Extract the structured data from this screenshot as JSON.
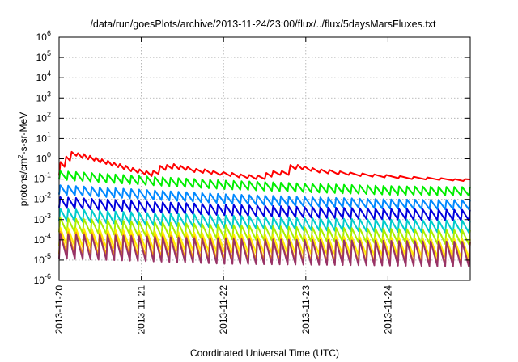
{
  "chart_data": {
    "type": "line",
    "title": "/data/run/goesPlots/archive/2013-11-24/23:00/flux/../flux/5daysMarsFluxes.txt",
    "xlabel": "Coordinated Universal Time (UTC)",
    "ylabel": {
      "prefix": "protons/cm",
      "sup": "2",
      "suffix": "-s-sr-MeV"
    },
    "xlim": [
      "2013-11-20",
      "2013-11-25"
    ],
    "ylim": [
      1e-06,
      1000000.0
    ],
    "yscale": "log",
    "grid": true,
    "legend": "none",
    "x_ticks": [
      "2013-11-20",
      "2013-11-21",
      "2013-11-22",
      "2013-11-23",
      "2013-11-24"
    ],
    "y_ticks": [
      {
        "value": 1000000.0,
        "base": "10",
        "exp": "6"
      },
      {
        "value": 100000.0,
        "base": "10",
        "exp": "5"
      },
      {
        "value": 10000.0,
        "base": "10",
        "exp": "4"
      },
      {
        "value": 1000.0,
        "base": "10",
        "exp": "3"
      },
      {
        "value": 100.0,
        "base": "10",
        "exp": "2"
      },
      {
        "value": 10.0,
        "base": "10",
        "exp": "1"
      },
      {
        "value": 1.0,
        "base": "10",
        "exp": "0"
      },
      {
        "value": 0.1,
        "base": "10",
        "exp": "-1"
      },
      {
        "value": 0.01,
        "base": "10",
        "exp": "-2"
      },
      {
        "value": 0.001,
        "base": "10",
        "exp": "-3"
      },
      {
        "value": 0.0001,
        "base": "10",
        "exp": "-4"
      },
      {
        "value": 1e-05,
        "base": "10",
        "exp": "-5"
      },
      {
        "value": 1e-06,
        "base": "10",
        "exp": "-6"
      }
    ],
    "series": [
      {
        "color": "#ff0000",
        "points": [
          [
            "2013-11-20T00:00",
            0.15
          ],
          [
            "2013-11-20T00:25",
            0.7
          ],
          [
            "2013-11-20T01:35",
            0.4
          ],
          [
            "2013-11-20T02:05",
            1.3
          ],
          [
            "2013-11-20T03:10",
            0.8
          ],
          [
            "2013-11-20T03:40",
            2.2
          ],
          [
            "2013-11-20T05:00",
            1.4
          ],
          [
            "2013-11-20T05:30",
            1.9
          ],
          [
            "2013-11-20T06:45",
            1.1
          ],
          [
            "2013-11-20T07:15",
            1.7
          ],
          [
            "2013-11-20T08:30",
            0.95
          ],
          [
            "2013-11-20T09:00",
            1.4
          ],
          [
            "2013-11-20T10:15",
            0.8
          ],
          [
            "2013-11-20T10:45",
            1.15
          ],
          [
            "2013-11-20T12:00",
            0.65
          ],
          [
            "2013-11-20T12:30",
            0.95
          ],
          [
            "2013-11-20T13:45",
            0.55
          ],
          [
            "2013-11-20T14:15",
            0.8
          ],
          [
            "2013-11-20T15:30",
            0.45
          ],
          [
            "2013-11-20T16:00",
            0.65
          ],
          [
            "2013-11-20T17:15",
            0.38
          ],
          [
            "2013-11-20T17:45",
            0.55
          ],
          [
            "2013-11-20T19:00",
            0.3
          ],
          [
            "2013-11-20T19:30",
            0.45
          ],
          [
            "2013-11-20T21:00",
            0.24
          ],
          [
            "2013-11-20T21:30",
            0.35
          ],
          [
            "2013-11-20T23:00",
            0.2
          ],
          [
            "2013-11-20T23:30",
            0.3
          ],
          [
            "2013-11-21T01:00",
            0.17
          ],
          [
            "2013-11-21T01:30",
            0.25
          ],
          [
            "2013-11-21T03:00",
            0.14
          ],
          [
            "2013-11-21T03:30",
            0.25
          ],
          [
            "2013-11-21T05:00",
            0.18
          ],
          [
            "2013-11-21T05:30",
            0.45
          ],
          [
            "2013-11-21T07:00",
            0.28
          ],
          [
            "2013-11-21T07:30",
            0.5
          ],
          [
            "2013-11-21T09:00",
            0.32
          ],
          [
            "2013-11-21T09:30",
            0.55
          ],
          [
            "2013-11-21T11:00",
            0.3
          ],
          [
            "2013-11-21T11:30",
            0.45
          ],
          [
            "2013-11-21T13:00",
            0.28
          ],
          [
            "2013-11-21T13:30",
            0.4
          ],
          [
            "2013-11-21T15:30",
            0.22
          ],
          [
            "2013-11-21T16:00",
            0.32
          ],
          [
            "2013-11-21T18:00",
            0.2
          ],
          [
            "2013-11-21T18:30",
            0.3
          ],
          [
            "2013-11-21T20:30",
            0.18
          ],
          [
            "2013-11-21T21:00",
            0.25
          ],
          [
            "2013-11-21T23:00",
            0.16
          ],
          [
            "2013-11-22T00:00",
            0.22
          ],
          [
            "2013-11-22T02:00",
            0.14
          ],
          [
            "2013-11-22T02:30",
            0.2
          ],
          [
            "2013-11-22T04:30",
            0.12
          ],
          [
            "2013-11-22T05:00",
            0.17
          ],
          [
            "2013-11-22T07:00",
            0.11
          ],
          [
            "2013-11-22T07:30",
            0.16
          ],
          [
            "2013-11-22T09:30",
            0.1
          ],
          [
            "2013-11-22T10:00",
            0.15
          ],
          [
            "2013-11-22T12:00",
            0.1
          ],
          [
            "2013-11-22T12:30",
            0.2
          ],
          [
            "2013-11-22T14:00",
            0.13
          ],
          [
            "2013-11-22T14:30",
            0.25
          ],
          [
            "2013-11-22T16:30",
            0.16
          ],
          [
            "2013-11-22T17:00",
            0.25
          ],
          [
            "2013-11-22T19:00",
            0.16
          ],
          [
            "2013-11-22T19:30",
            0.5
          ],
          [
            "2013-11-22T21:00",
            0.3
          ],
          [
            "2013-11-22T21:40",
            0.5
          ],
          [
            "2013-11-22T23:00",
            0.3
          ],
          [
            "2013-11-22T23:40",
            0.42
          ],
          [
            "2013-11-23T01:30",
            0.25
          ],
          [
            "2013-11-23T02:00",
            0.35
          ],
          [
            "2013-11-23T04:00",
            0.21
          ],
          [
            "2013-11-23T04:30",
            0.3
          ],
          [
            "2013-11-23T06:30",
            0.19
          ],
          [
            "2013-11-23T07:00",
            0.28
          ],
          [
            "2013-11-23T09:30",
            0.17
          ],
          [
            "2013-11-23T10:00",
            0.24
          ],
          [
            "2013-11-23T12:30",
            0.16
          ],
          [
            "2013-11-23T13:00",
            0.21
          ],
          [
            "2013-11-23T16:00",
            0.14
          ],
          [
            "2013-11-23T16:30",
            0.19
          ],
          [
            "2013-11-23T19:30",
            0.13
          ],
          [
            "2013-11-23T20:00",
            0.17
          ],
          [
            "2013-11-23T23:00",
            0.12
          ],
          [
            "2013-11-23T23:30",
            0.16
          ],
          [
            "2013-11-24T03:00",
            0.11
          ],
          [
            "2013-11-24T03:30",
            0.14
          ],
          [
            "2013-11-24T07:00",
            0.1
          ],
          [
            "2013-11-24T07:30",
            0.13
          ],
          [
            "2013-11-24T11:00",
            0.095
          ],
          [
            "2013-11-24T11:30",
            0.12
          ],
          [
            "2013-11-24T15:00",
            0.09
          ],
          [
            "2013-11-24T15:30",
            0.11
          ],
          [
            "2013-11-24T19:00",
            0.085
          ],
          [
            "2013-11-24T19:30",
            0.1
          ],
          [
            "2013-11-24T22:00",
            0.08
          ],
          [
            "2013-11-24T22:30",
            0.1
          ],
          [
            "2013-11-25T00:00",
            0.095
          ]
        ]
      },
      {
        "color": "#00ee00",
        "env": {
          "hi": [
            [
              0,
              0.25
            ],
            [
              1,
              0.14
            ],
            [
              2,
              0.085
            ],
            [
              3,
              0.06
            ],
            [
              4,
              0.045
            ],
            [
              5,
              0.04
            ]
          ],
          "lo": 0.38,
          "period_h": 2.3
        }
      },
      {
        "color": "#0088ff",
        "env": {
          "hi": [
            [
              0,
              0.05
            ],
            [
              1,
              0.03
            ],
            [
              2,
              0.018
            ],
            [
              3,
              0.013
            ],
            [
              4,
              0.01
            ],
            [
              5,
              0.009
            ]
          ],
          "lo": 0.35,
          "period_h": 2.3
        }
      },
      {
        "color": "#0000dd",
        "env": {
          "hi": [
            [
              0,
              0.013
            ],
            [
              1,
              0.008
            ],
            [
              2,
              0.0055
            ],
            [
              3,
              0.0042
            ],
            [
              4,
              0.0034
            ],
            [
              5,
              0.003
            ]
          ],
          "lo": 0.3,
          "period_h": 2.3
        }
      },
      {
        "color": "#00cccc",
        "env": {
          "hi": [
            [
              0,
              0.0035
            ],
            [
              1,
              0.0022
            ],
            [
              2,
              0.0016
            ],
            [
              3,
              0.0012
            ],
            [
              4,
              0.001
            ],
            [
              5,
              0.0009
            ]
          ],
          "lo": 0.25,
          "period_h": 2.3
        }
      },
      {
        "color": "#aaee00",
        "env": {
          "hi": [
            [
              0,
              0.0012
            ],
            [
              1,
              0.0008
            ],
            [
              2,
              0.00055
            ],
            [
              3,
              0.00042
            ],
            [
              4,
              0.00035
            ],
            [
              5,
              0.0003
            ]
          ],
          "lo": 0.2,
          "period_h": 2.3
        }
      },
      {
        "color": "#ffee00",
        "env": {
          "hi": [
            [
              0,
              0.0004
            ],
            [
              1,
              0.00028
            ],
            [
              2,
              0.0002
            ],
            [
              3,
              0.00016
            ],
            [
              4,
              0.00013
            ],
            [
              5,
              0.00011
            ]
          ],
          "lo": 0.12,
          "period_h": 2.3
        }
      },
      {
        "color": "#ffaa00",
        "env": {
          "hi": [
            [
              0,
              0.00025
            ],
            [
              1,
              0.00018
            ],
            [
              2,
              0.00013
            ],
            [
              3,
              0.0001
            ],
            [
              4,
              9e-05
            ],
            [
              5,
              8e-05
            ]
          ],
          "lo": 0.08,
          "period_h": 2.3
        }
      },
      {
        "color": "#993366",
        "env": {
          "hi": [
            [
              0,
              0.0002
            ],
            [
              1,
              0.00015
            ],
            [
              2,
              0.00011
            ],
            [
              3,
              0.0001
            ],
            [
              4,
              9e-05
            ],
            [
              5,
              8e-05
            ]
          ],
          "lo": 0.06,
          "period_h": 2.3
        }
      }
    ]
  }
}
